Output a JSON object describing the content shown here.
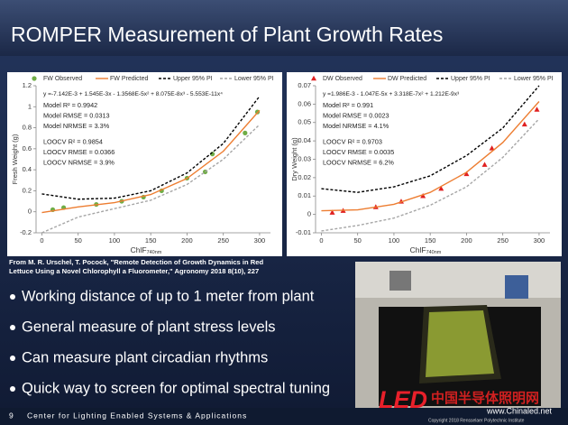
{
  "title": "ROMPER Measurement of Plant Growth Rates",
  "citation": [
    "From M. R. Urschel, T. Pocock, \"Remote Detection of Growth Dynamics in Red",
    "Lettuce Using a Novel Chlorophyll a Fluorometer,\" Agronomy 2018 8(10), 227"
  ],
  "bullets": [
    "Working distance of up to 1 meter from plant",
    "General measure of plant stress levels",
    "Can measure plant circadian rhythms",
    "Quick way to screen for optimal spectral tuning"
  ],
  "footer": {
    "page": "9",
    "text": "Center for Lighting Enabled Systems & Applications",
    "copyright": "Copyright 2018 Rensselaer Polytechnic Institute",
    "logo": "LED",
    "watermark": "中国半导体照明网",
    "url": "www.Chinaled.net"
  },
  "chart_data": [
    {
      "type": "scatter",
      "y_label": "Fresh Weight (g)",
      "x_label": "ChlF",
      "x_label_sub": "740nm",
      "xlim": [
        -8,
        315
      ],
      "xticks": [
        0,
        50,
        100,
        150,
        200,
        250,
        300
      ],
      "ylim": [
        -0.2,
        1.2
      ],
      "yticks": [
        -0.2,
        0,
        0.2,
        0.4,
        0.6,
        0.8,
        1,
        1.2
      ],
      "annotations": [
        "y =-7.142E-3 + 1.545E-3x - 1.3568E-5x² + 8.075E-8x³ - 5.553E-11x⁴",
        "Model R² = 0.9942",
        "Model RMSE = 0.0313",
        "Model NRMSE = 3.3%",
        "LOOCV R² = 0.9854",
        "LOOCV RMSE = 0.0366",
        "LOOCV NRMSE = 3.9%"
      ],
      "series": [
        {
          "name": "FW Observed",
          "color": "#70ad47",
          "style": "marker",
          "marker": "circle",
          "x": [
            15,
            30,
            75,
            110,
            140,
            165,
            200,
            225,
            235,
            280,
            297
          ],
          "values": [
            0.02,
            0.04,
            0.07,
            0.1,
            0.14,
            0.2,
            0.32,
            0.38,
            0.55,
            0.75,
            0.95
          ]
        },
        {
          "name": "FW Predicted",
          "color": "#ed7d31",
          "style": "solid",
          "x": [
            0,
            50,
            100,
            150,
            200,
            250,
            300
          ],
          "values": [
            -0.007,
            0.046,
            0.087,
            0.164,
            0.317,
            0.576,
            0.966
          ]
        },
        {
          "name": "Upper 95% PI",
          "color": "#000000",
          "style": "dashed",
          "x": [
            0,
            50,
            100,
            150,
            200,
            250,
            300
          ],
          "values": [
            0.17,
            0.12,
            0.13,
            0.2,
            0.37,
            0.65,
            1.1
          ]
        },
        {
          "name": "Lower 95% PI",
          "color": "#a6a6a6",
          "style": "dashed",
          "x": [
            0,
            50,
            100,
            150,
            200,
            250,
            300
          ],
          "values": [
            -0.2,
            -0.05,
            0.03,
            0.11,
            0.26,
            0.5,
            0.83
          ]
        }
      ]
    },
    {
      "type": "scatter",
      "y_label": "Dry Weight (g)",
      "x_label": "ChlF",
      "x_label_sub": "740nm",
      "xlim": [
        -8,
        315
      ],
      "xticks": [
        0,
        50,
        100,
        150,
        200,
        250,
        300
      ],
      "ylim": [
        -0.01,
        0.07
      ],
      "yticks": [
        -0.01,
        0,
        0.01,
        0.02,
        0.03,
        0.04,
        0.05,
        0.06,
        0.07
      ],
      "annotations": [
        "y =1.986E-3 - 1.047E-5x + 3.318E-7x² + 1.212E-9x³",
        "Model R² = 0.991",
        "Model RMSE = 0.0023",
        "Model NRMSE = 4.1%",
        "LOOCV R² = 0.9703",
        "LOOCV RMSE = 0.0035",
        "LOOCV NRMSE = 6.2%"
      ],
      "series": [
        {
          "name": "DW Observed",
          "color": "#e02020",
          "style": "marker",
          "marker": "triangle",
          "x": [
            15,
            30,
            75,
            110,
            140,
            165,
            200,
            225,
            235,
            280,
            297
          ],
          "values": [
            0.001,
            0.002,
            0.004,
            0.007,
            0.01,
            0.014,
            0.022,
            0.027,
            0.036,
            0.049,
            0.057
          ]
        },
        {
          "name": "DW Predicted",
          "color": "#ed7d31",
          "style": "solid",
          "x": [
            0,
            50,
            100,
            150,
            200,
            250,
            300
          ],
          "values": [
            0.002,
            0.0025,
            0.0055,
            0.012,
            0.0229,
            0.0391,
            0.0614
          ]
        },
        {
          "name": "Upper 95% PI",
          "color": "#000000",
          "style": "dashed",
          "x": [
            0,
            50,
            100,
            150,
            200,
            250,
            300
          ],
          "values": [
            0.014,
            0.012,
            0.015,
            0.021,
            0.032,
            0.047,
            0.07
          ]
        },
        {
          "name": "Lower 95% PI",
          "color": "#a6a6a6",
          "style": "dashed",
          "x": [
            0,
            50,
            100,
            150,
            200,
            250,
            300
          ],
          "values": [
            -0.009,
            -0.006,
            -0.002,
            0.005,
            0.015,
            0.031,
            0.052
          ]
        }
      ]
    }
  ]
}
